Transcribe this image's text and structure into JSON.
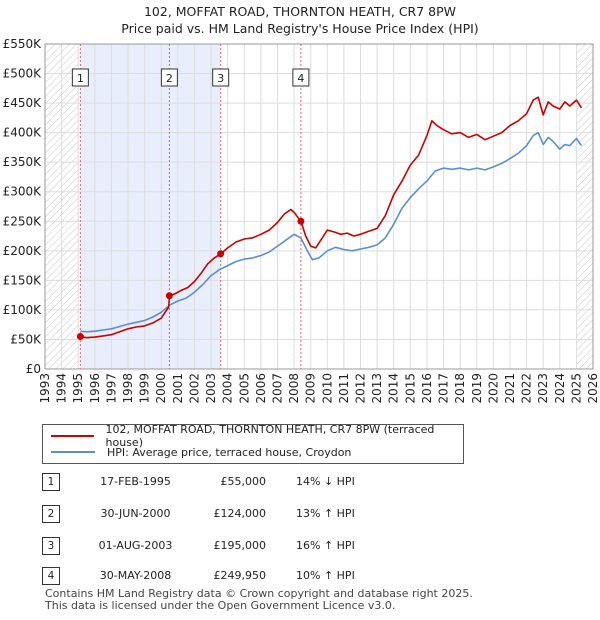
{
  "chart_data": {
    "type": "line",
    "title": "102, MOFFAT ROAD, THORNTON HEATH, CR7 8PW",
    "subtitle": "Price paid vs. HM Land Registry's House Price Index (HPI)",
    "xlabel": "",
    "ylabel": "",
    "xlim": [
      1993,
      2026
    ],
    "ylim": [
      0,
      550000
    ],
    "y_ticks": [
      {
        "value": 0,
        "label": "£0"
      },
      {
        "value": 50000,
        "label": "£50K"
      },
      {
        "value": 100000,
        "label": "£100K"
      },
      {
        "value": 150000,
        "label": "£150K"
      },
      {
        "value": 200000,
        "label": "£200K"
      },
      {
        "value": 250000,
        "label": "£250K"
      },
      {
        "value": 300000,
        "label": "£300K"
      },
      {
        "value": 350000,
        "label": "£350K"
      },
      {
        "value": 400000,
        "label": "£400K"
      },
      {
        "value": 450000,
        "label": "£450K"
      },
      {
        "value": 500000,
        "label": "£500K"
      },
      {
        "value": 550000,
        "label": "£550K"
      }
    ],
    "x_ticks": [
      "1993",
      "1994",
      "1995",
      "1996",
      "1997",
      "1998",
      "1999",
      "2000",
      "2001",
      "2002",
      "2003",
      "2004",
      "2005",
      "2006",
      "2007",
      "2008",
      "2009",
      "2010",
      "2011",
      "2012",
      "2013",
      "2014",
      "2015",
      "2016",
      "2017",
      "2018",
      "2019",
      "2020",
      "2021",
      "2022",
      "2023",
      "2024",
      "2025",
      "2026"
    ],
    "grid": true,
    "shaded_ranges": [
      [
        1995.12,
        2003.58
      ]
    ],
    "hatched_ranges": [
      [
        1993,
        1995.0
      ],
      [
        2025.0,
        2026
      ]
    ],
    "series": [
      {
        "name": "102, MOFFAT ROAD, THORNTON HEATH, CR7 8PW (terraced house)",
        "color": "#cc0000",
        "x": [
          1995.13,
          1995.5,
          1996.0,
          1996.5,
          1997.0,
          1997.5,
          1998.0,
          1998.5,
          1999.0,
          1999.5,
          2000.0,
          2000.45,
          2000.5,
          2000.8,
          2001.2,
          2001.6,
          2002.0,
          2002.4,
          2002.8,
          2003.2,
          2003.58,
          2004.0,
          2004.5,
          2005.0,
          2005.5,
          2006.0,
          2006.5,
          2007.0,
          2007.4,
          2007.8,
          2008.0,
          2008.41,
          2008.7,
          2009.0,
          2009.3,
          2009.7,
          2010.0,
          2010.4,
          2010.8,
          2011.2,
          2011.6,
          2012.0,
          2012.5,
          2013.0,
          2013.5,
          2014.0,
          2014.5,
          2015.0,
          2015.5,
          2016.0,
          2016.3,
          2016.6,
          2017.0,
          2017.5,
          2018.0,
          2018.5,
          2019.0,
          2019.5,
          2020.0,
          2020.5,
          2021.0,
          2021.5,
          2022.0,
          2022.4,
          2022.7,
          2023.0,
          2023.3,
          2023.6,
          2024.0,
          2024.3,
          2024.6,
          2025.0,
          2025.3
        ],
        "values": [
          55000,
          53000,
          54000,
          56000,
          58000,
          63000,
          68000,
          71000,
          73000,
          78000,
          86000,
          105000,
          124000,
          127000,
          133000,
          138000,
          148000,
          162000,
          178000,
          188000,
          195000,
          205000,
          215000,
          220000,
          222000,
          228000,
          235000,
          248000,
          262000,
          270000,
          265000,
          249950,
          225000,
          208000,
          205000,
          222000,
          235000,
          232000,
          228000,
          230000,
          225000,
          228000,
          233000,
          238000,
          260000,
          295000,
          318000,
          345000,
          362000,
          395000,
          420000,
          412000,
          405000,
          398000,
          400000,
          392000,
          397000,
          388000,
          394000,
          400000,
          412000,
          420000,
          432000,
          455000,
          460000,
          430000,
          452000,
          445000,
          440000,
          452000,
          445000,
          455000,
          442000
        ]
      },
      {
        "name": "HPI: Average price, terraced house, Croydon",
        "color": "#5b8fd0",
        "x": [
          1995.13,
          1995.5,
          1996.0,
          1996.5,
          1997.0,
          1997.5,
          1998.0,
          1998.5,
          1999.0,
          1999.5,
          2000.0,
          2000.5,
          2001.0,
          2001.5,
          2002.0,
          2002.5,
          2003.0,
          2003.5,
          2004.0,
          2004.5,
          2005.0,
          2005.5,
          2006.0,
          2006.5,
          2007.0,
          2007.5,
          2008.0,
          2008.4,
          2008.8,
          2009.1,
          2009.5,
          2010.0,
          2010.5,
          2011.0,
          2011.5,
          2012.0,
          2012.5,
          2013.0,
          2013.5,
          2014.0,
          2014.5,
          2015.0,
          2015.5,
          2016.0,
          2016.5,
          2017.0,
          2017.5,
          2018.0,
          2018.5,
          2019.0,
          2019.5,
          2020.0,
          2020.5,
          2021.0,
          2021.5,
          2022.0,
          2022.4,
          2022.7,
          2023.0,
          2023.3,
          2023.6,
          2024.0,
          2024.3,
          2024.6,
          2025.0,
          2025.3
        ],
        "values": [
          64000,
          63000,
          64000,
          66000,
          68000,
          72000,
          76000,
          79000,
          82000,
          88000,
          96000,
          108000,
          115000,
          120000,
          130000,
          143000,
          158000,
          168000,
          175000,
          182000,
          186000,
          188000,
          192000,
          198000,
          208000,
          218000,
          228000,
          222000,
          200000,
          185000,
          188000,
          200000,
          206000,
          202000,
          200000,
          203000,
          206000,
          210000,
          222000,
          245000,
          272000,
          290000,
          305000,
          318000,
          335000,
          340000,
          338000,
          340000,
          337000,
          340000,
          337000,
          342000,
          348000,
          356000,
          365000,
          378000,
          395000,
          400000,
          380000,
          392000,
          385000,
          372000,
          380000,
          378000,
          390000,
          378000
        ]
      }
    ],
    "sales": [
      {
        "num": "1",
        "date": "17-FEB-1995",
        "price": "£55,000",
        "hpi": "14% ↓ HPI",
        "x": 1995.13,
        "value": 55000
      },
      {
        "num": "2",
        "date": "30-JUN-2000",
        "price": "£124,000",
        "hpi": "13% ↑ HPI",
        "x": 2000.49,
        "value": 124000
      },
      {
        "num": "3",
        "date": "01-AUG-2003",
        "price": "£195,000",
        "hpi": "16% ↑ HPI",
        "x": 2003.58,
        "value": 195000
      },
      {
        "num": "4",
        "date": "30-MAY-2008",
        "price": "£249,950",
        "hpi": "10% ↑ HPI",
        "x": 2008.41,
        "value": 249950
      }
    ],
    "legend": [
      {
        "label": "102, MOFFAT ROAD, THORNTON HEATH, CR7 8PW (terraced house)",
        "color": "#cc0000"
      },
      {
        "label": "HPI: Average price, terraced house, Croydon",
        "color": "#5b8fd0"
      }
    ]
  },
  "footer": {
    "line1": "Contains HM Land Registry data © Crown copyright and database right 2025.",
    "line2": "This data is licensed under the Open Government Licence v3.0."
  },
  "colors": {
    "price_line": "#cc0000",
    "hpi_line": "#5b8fd0",
    "shade": "#e8eefb",
    "grid": "#dddddd",
    "marker_line": "#e06666"
  }
}
